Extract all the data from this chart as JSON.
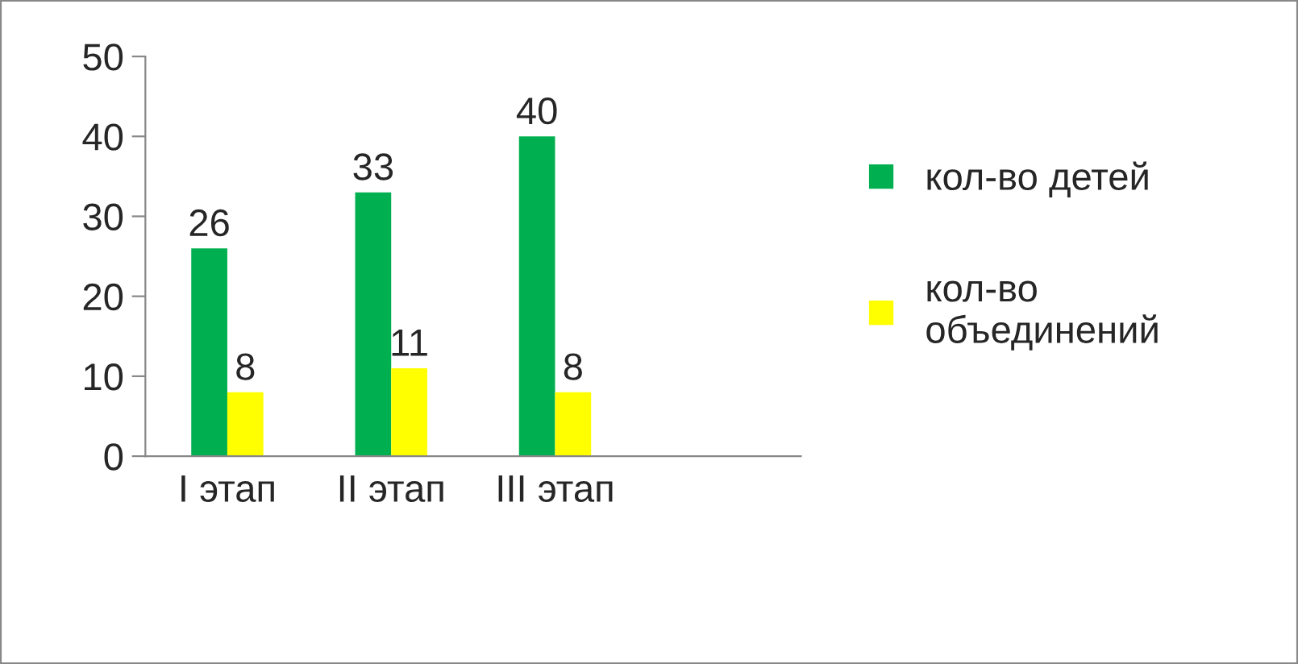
{
  "chart_data": {
    "type": "bar",
    "categories": [
      "I этап",
      "II этап",
      "III этап",
      null
    ],
    "series": [
      {
        "name": "кол-во детей",
        "color": "#00b050",
        "values": [
          26,
          33,
          40,
          null
        ]
      },
      {
        "name": "кол-во объединений",
        "color": "#ffff00",
        "values": [
          8,
          11,
          8,
          null
        ]
      }
    ],
    "ylim": [
      0,
      50
    ],
    "yticks": [
      0,
      10,
      20,
      30,
      40,
      50
    ],
    "data_labels": true,
    "legend": "right",
    "grid": false
  }
}
